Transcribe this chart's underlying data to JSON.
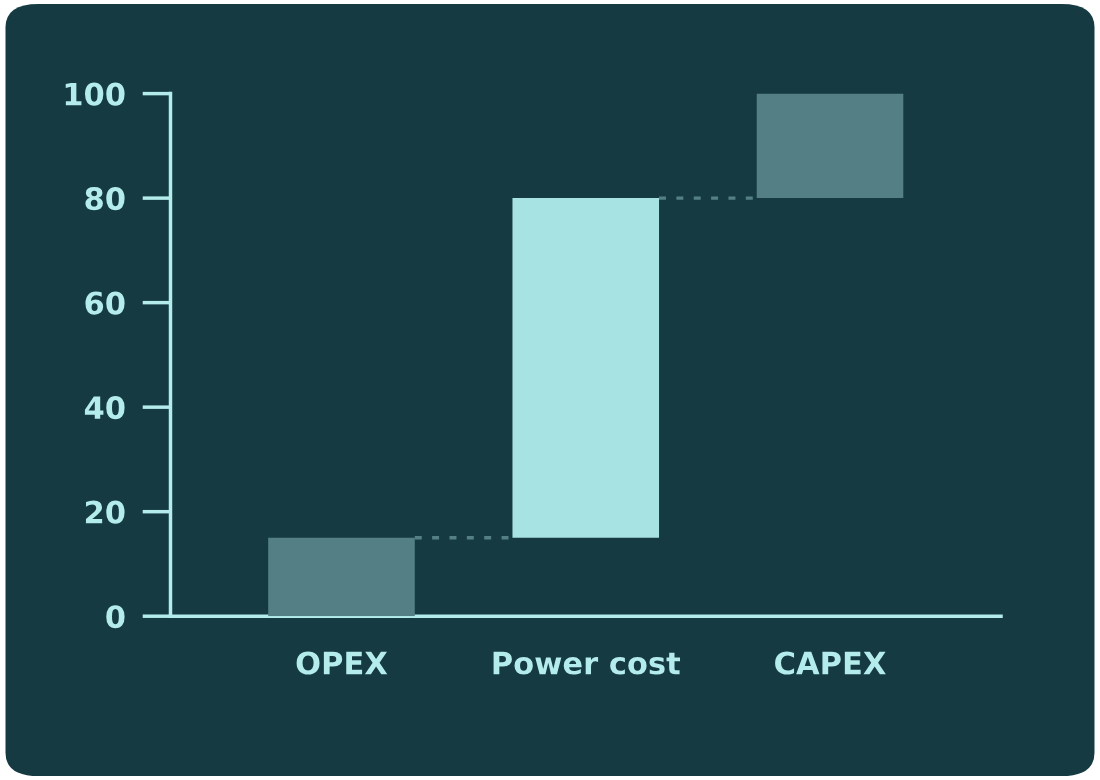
{
  "chart_data": {
    "type": "bar",
    "categories": [
      "OPEX",
      "Power cost",
      "CAPEX"
    ],
    "values": [
      15,
      65,
      20
    ],
    "base": [
      0,
      15,
      80
    ],
    "colors": [
      "#548085",
      "#a8e3e3",
      "#548085"
    ],
    "ylim": [
      0,
      100
    ],
    "yticks": [
      0,
      20,
      40,
      60,
      80,
      100
    ],
    "grid": false,
    "legend": false
  }
}
